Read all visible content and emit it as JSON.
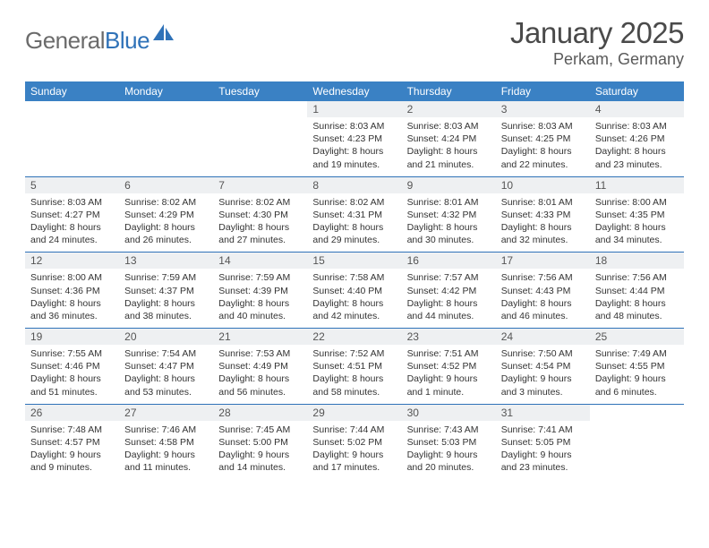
{
  "brand": {
    "word1": "General",
    "word2": "Blue"
  },
  "title": "January 2025",
  "location": "Perkam, Germany",
  "colors": {
    "header_bg": "#3a81c4",
    "daynum_bg": "#eef0f2",
    "rule": "#2f72b8",
    "text": "#333333",
    "brand_gray": "#6b6b6b",
    "brand_blue": "#2f72b8"
  },
  "weekdays": [
    "Sunday",
    "Monday",
    "Tuesday",
    "Wednesday",
    "Thursday",
    "Friday",
    "Saturday"
  ],
  "weeks": [
    {
      "nums": [
        "",
        "",
        "",
        "1",
        "2",
        "3",
        "4"
      ],
      "cells": [
        null,
        null,
        null,
        {
          "sr": "8:03 AM",
          "ss": "4:23 PM",
          "dh": "8",
          "dm": "19"
        },
        {
          "sr": "8:03 AM",
          "ss": "4:24 PM",
          "dh": "8",
          "dm": "21"
        },
        {
          "sr": "8:03 AM",
          "ss": "4:25 PM",
          "dh": "8",
          "dm": "22"
        },
        {
          "sr": "8:03 AM",
          "ss": "4:26 PM",
          "dh": "8",
          "dm": "23"
        }
      ]
    },
    {
      "nums": [
        "5",
        "6",
        "7",
        "8",
        "9",
        "10",
        "11"
      ],
      "cells": [
        {
          "sr": "8:03 AM",
          "ss": "4:27 PM",
          "dh": "8",
          "dm": "24"
        },
        {
          "sr": "8:02 AM",
          "ss": "4:29 PM",
          "dh": "8",
          "dm": "26"
        },
        {
          "sr": "8:02 AM",
          "ss": "4:30 PM",
          "dh": "8",
          "dm": "27"
        },
        {
          "sr": "8:02 AM",
          "ss": "4:31 PM",
          "dh": "8",
          "dm": "29"
        },
        {
          "sr": "8:01 AM",
          "ss": "4:32 PM",
          "dh": "8",
          "dm": "30"
        },
        {
          "sr": "8:01 AM",
          "ss": "4:33 PM",
          "dh": "8",
          "dm": "32"
        },
        {
          "sr": "8:00 AM",
          "ss": "4:35 PM",
          "dh": "8",
          "dm": "34"
        }
      ]
    },
    {
      "nums": [
        "12",
        "13",
        "14",
        "15",
        "16",
        "17",
        "18"
      ],
      "cells": [
        {
          "sr": "8:00 AM",
          "ss": "4:36 PM",
          "dh": "8",
          "dm": "36"
        },
        {
          "sr": "7:59 AM",
          "ss": "4:37 PM",
          "dh": "8",
          "dm": "38"
        },
        {
          "sr": "7:59 AM",
          "ss": "4:39 PM",
          "dh": "8",
          "dm": "40"
        },
        {
          "sr": "7:58 AM",
          "ss": "4:40 PM",
          "dh": "8",
          "dm": "42"
        },
        {
          "sr": "7:57 AM",
          "ss": "4:42 PM",
          "dh": "8",
          "dm": "44"
        },
        {
          "sr": "7:56 AM",
          "ss": "4:43 PM",
          "dh": "8",
          "dm": "46"
        },
        {
          "sr": "7:56 AM",
          "ss": "4:44 PM",
          "dh": "8",
          "dm": "48"
        }
      ]
    },
    {
      "nums": [
        "19",
        "20",
        "21",
        "22",
        "23",
        "24",
        "25"
      ],
      "cells": [
        {
          "sr": "7:55 AM",
          "ss": "4:46 PM",
          "dh": "8",
          "dm": "51"
        },
        {
          "sr": "7:54 AM",
          "ss": "4:47 PM",
          "dh": "8",
          "dm": "53"
        },
        {
          "sr": "7:53 AM",
          "ss": "4:49 PM",
          "dh": "8",
          "dm": "56"
        },
        {
          "sr": "7:52 AM",
          "ss": "4:51 PM",
          "dh": "8",
          "dm": "58"
        },
        {
          "sr": "7:51 AM",
          "ss": "4:52 PM",
          "dh": "9",
          "dm": "1"
        },
        {
          "sr": "7:50 AM",
          "ss": "4:54 PM",
          "dh": "9",
          "dm": "3"
        },
        {
          "sr": "7:49 AM",
          "ss": "4:55 PM",
          "dh": "9",
          "dm": "6"
        }
      ]
    },
    {
      "nums": [
        "26",
        "27",
        "28",
        "29",
        "30",
        "31",
        ""
      ],
      "cells": [
        {
          "sr": "7:48 AM",
          "ss": "4:57 PM",
          "dh": "9",
          "dm": "9"
        },
        {
          "sr": "7:46 AM",
          "ss": "4:58 PM",
          "dh": "9",
          "dm": "11"
        },
        {
          "sr": "7:45 AM",
          "ss": "5:00 PM",
          "dh": "9",
          "dm": "14"
        },
        {
          "sr": "7:44 AM",
          "ss": "5:02 PM",
          "dh": "9",
          "dm": "17"
        },
        {
          "sr": "7:43 AM",
          "ss": "5:03 PM",
          "dh": "9",
          "dm": "20"
        },
        {
          "sr": "7:41 AM",
          "ss": "5:05 PM",
          "dh": "9",
          "dm": "23"
        },
        null
      ]
    }
  ],
  "labels": {
    "sunrise": "Sunrise:",
    "sunset": "Sunset:",
    "daylight": "Daylight:",
    "hours": "hours",
    "and": "and",
    "minute_singular": "minute.",
    "minute_plural": "minutes."
  }
}
